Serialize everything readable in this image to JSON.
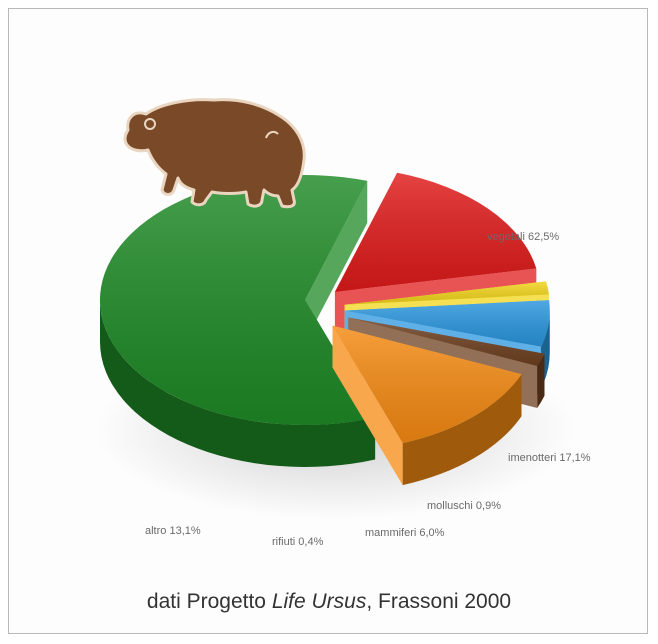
{
  "chart_data": {
    "type": "pie",
    "style": "3d-exploded",
    "slices": [
      {
        "label": "vegetali 62,5%",
        "value": 62.5,
        "color": "#1e8a26"
      },
      {
        "label": "imenotteri 17,1%",
        "value": 17.1,
        "color": "#e01a1a"
      },
      {
        "label": "molluschi 0,9%",
        "value": 0.9,
        "color": "#f2d51a"
      },
      {
        "label": "mammiferi 6,0%",
        "value": 6.0,
        "color": "#2a96de"
      },
      {
        "label": "rifiuti 0,4%",
        "value": 0.4,
        "color": "#6e4020"
      },
      {
        "label": "altro 13,1%",
        "value": 13.1,
        "color": "#f58a12"
      }
    ]
  },
  "caption": {
    "prefix": "dati Progetto ",
    "project": "Life Ursus",
    "suffix": ", Frassoni 2000"
  },
  "colors": {
    "bear": "#7a4a28",
    "bear_outline": "#ead6c0"
  },
  "icons": {
    "bear": "brown-bear-icon"
  }
}
